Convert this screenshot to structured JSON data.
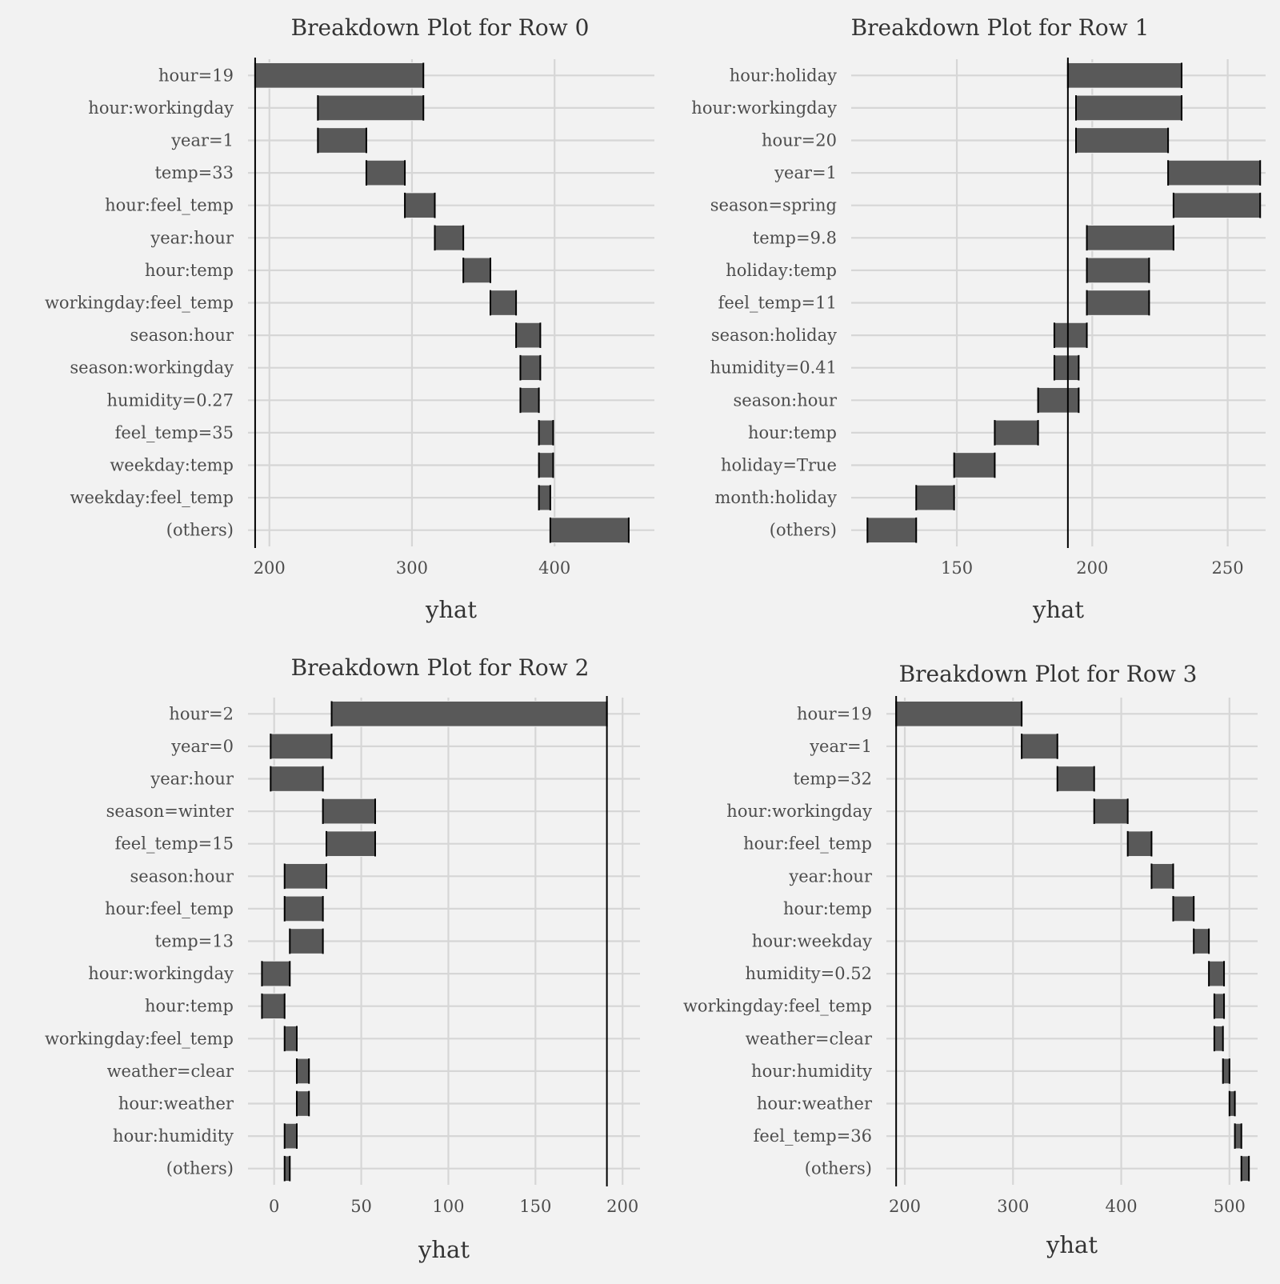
{
  "colors": {
    "background": "#f2f2f2",
    "bar": "#595959",
    "grid": "#d6d6d6",
    "baseline": "#000000",
    "text": "#4d4d4d"
  },
  "chart_data": [
    {
      "type": "bar",
      "subtype": "breakdown-waterfall",
      "title": "Breakdown Plot for Row 0",
      "xlabel": "yhat",
      "ylabel": "",
      "xlim": [
        185,
        470
      ],
      "xticks": [
        200,
        300,
        400
      ],
      "baseline": 190,
      "categories": [
        "hour=19",
        "hour:workingday",
        "year=1",
        "temp=33",
        "hour:feel_temp",
        "year:hour",
        "hour:temp",
        "workingday:feel_temp",
        "season:hour",
        "season:workingday",
        "humidity=0.27",
        "feel_temp=35",
        "weekday:temp",
        "weekday:feel_temp",
        "(others)"
      ],
      "start": [
        190,
        308,
        234,
        268,
        295,
        316,
        336,
        355,
        373,
        390,
        376,
        389,
        399,
        389,
        397
      ],
      "end": [
        308,
        234,
        268,
        295,
        316,
        336,
        355,
        373,
        390,
        376,
        389,
        399,
        389,
        397,
        452
      ]
    },
    {
      "type": "bar",
      "subtype": "breakdown-waterfall",
      "title": "Breakdown Plot for Row 1",
      "xlabel": "yhat",
      "ylabel": "",
      "xlim": [
        111,
        264
      ],
      "xticks": [
        150,
        200,
        250
      ],
      "baseline": 191,
      "categories": [
        "hour:holiday",
        "hour:workingday",
        "hour=20",
        "year=1",
        "season=spring",
        "temp=9.8",
        "holiday:temp",
        "feel_temp=11",
        "season:holiday",
        "humidity=0.41",
        "season:hour",
        "hour:temp",
        "holiday=True",
        "month:holiday",
        "(others)"
      ],
      "start": [
        191,
        233,
        194,
        228,
        262,
        230,
        198,
        221,
        198,
        186,
        195,
        180,
        164,
        149,
        135
      ],
      "end": [
        233,
        194,
        228,
        262,
        230,
        198,
        221,
        198,
        186,
        195,
        180,
        164,
        149,
        135,
        117
      ]
    },
    {
      "type": "bar",
      "subtype": "breakdown-waterfall",
      "title": "Breakdown Plot for Row 2",
      "xlabel": "yhat",
      "ylabel": "",
      "xlim": [
        -15,
        210
      ],
      "xticks": [
        0,
        50,
        100,
        150,
        200
      ],
      "baseline": 191,
      "categories": [
        "hour=2",
        "year=0",
        "year:hour",
        "season=winter",
        "feel_temp=15",
        "season:hour",
        "hour:feel_temp",
        "temp=13",
        "hour:workingday",
        "hour:temp",
        "workingday:feel_temp",
        "weather=clear",
        "hour:weather",
        "hour:humidity",
        "(others)"
      ],
      "start": [
        191,
        33,
        -2,
        28,
        58,
        30,
        6,
        28,
        9,
        -7,
        6,
        13,
        20,
        13,
        6
      ],
      "end": [
        33,
        -2,
        28,
        58,
        30,
        6,
        28,
        9,
        -7,
        6,
        13,
        20,
        13,
        6,
        9
      ]
    },
    {
      "type": "bar",
      "subtype": "breakdown-waterfall",
      "title": "Breakdown Plot for Row 3",
      "xlabel": "yhat",
      "ylabel": "",
      "xlim": [
        183,
        526
      ],
      "xticks": [
        200,
        300,
        400,
        500
      ],
      "baseline": 192,
      "categories": [
        "hour=19",
        "year=1",
        "temp=32",
        "hour:workingday",
        "hour:feel_temp",
        "year:hour",
        "hour:temp",
        "hour:weekday",
        "humidity=0.52",
        "workingday:feel_temp",
        "weather=clear",
        "hour:humidity",
        "hour:weather",
        "feel_temp=36",
        "(others)"
      ],
      "start": [
        192,
        308,
        341,
        375,
        406,
        428,
        448,
        467,
        481,
        495,
        486,
        494,
        500,
        505,
        511
      ],
      "end": [
        308,
        341,
        375,
        406,
        428,
        448,
        467,
        481,
        495,
        486,
        494,
        500,
        505,
        511,
        518
      ]
    }
  ]
}
